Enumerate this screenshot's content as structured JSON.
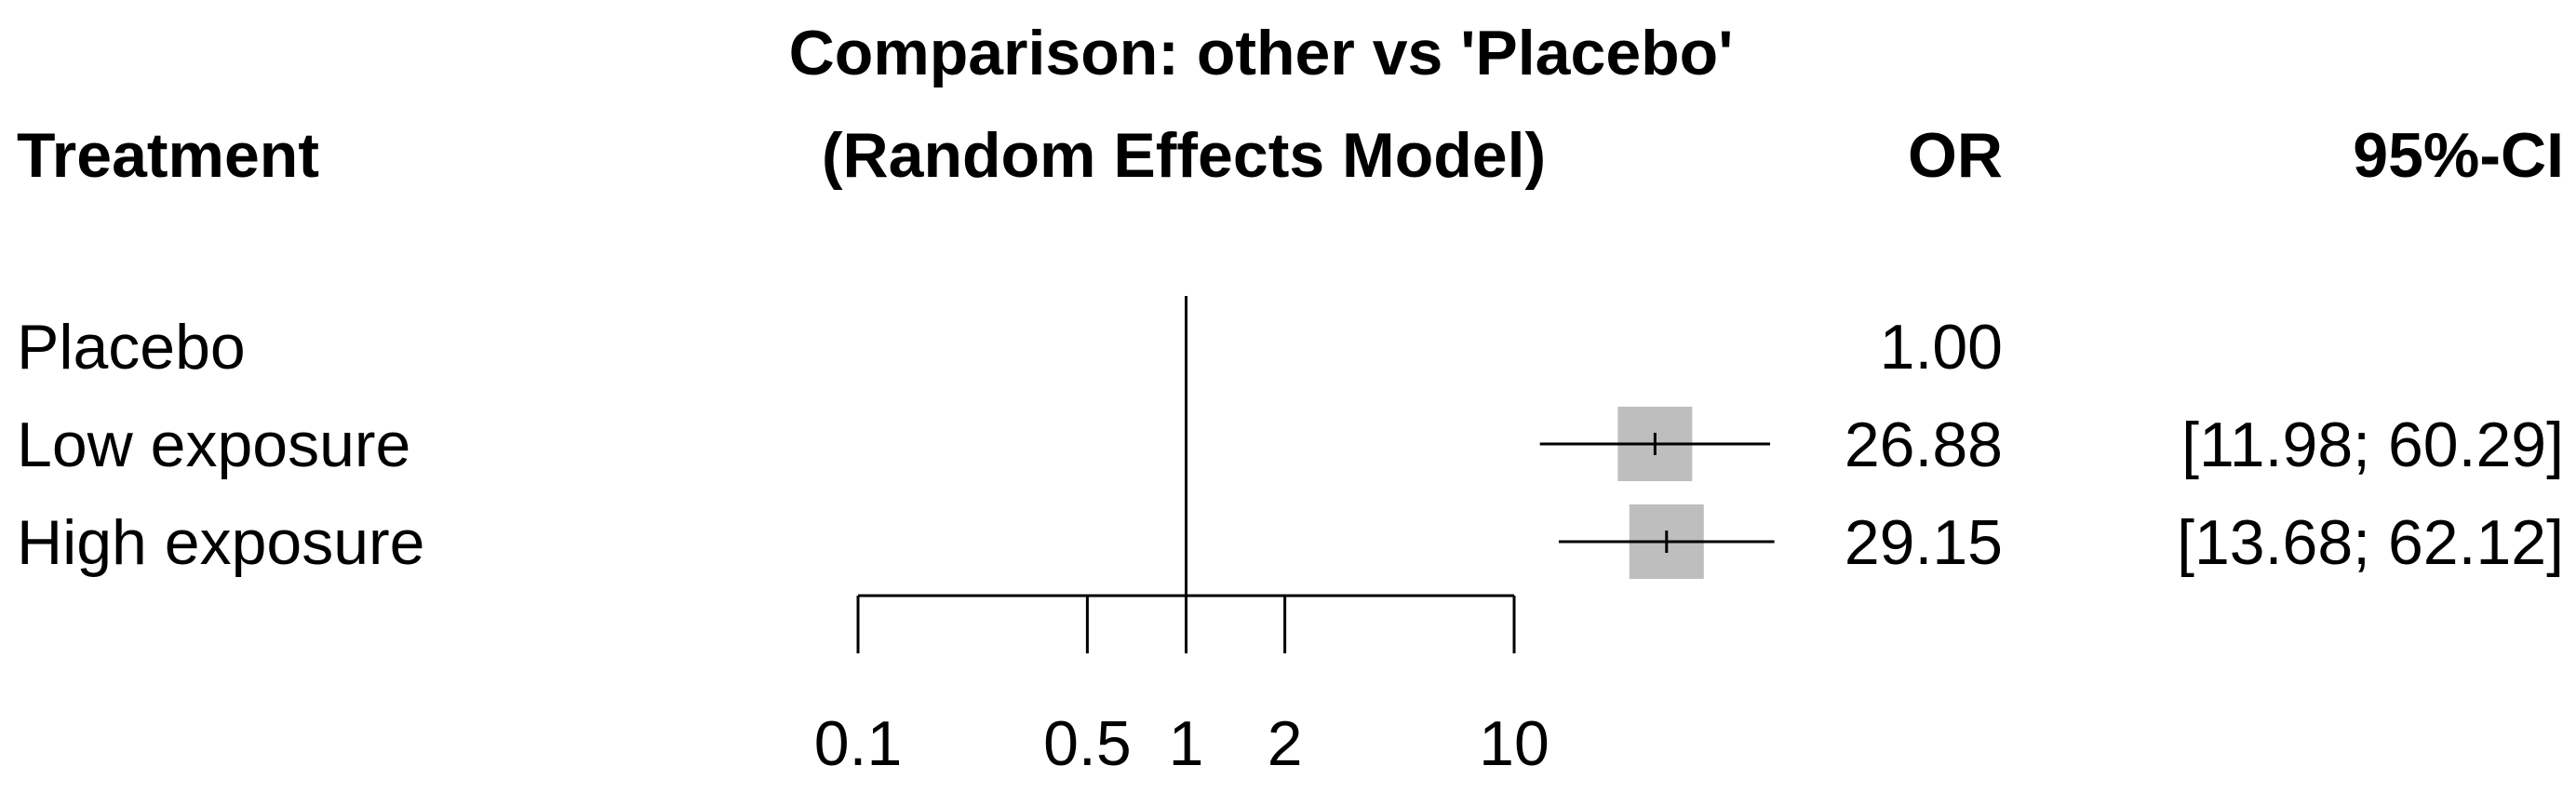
{
  "chart_data": {
    "type": "forest",
    "title_line1": "Comparison: other vs 'Placebo'",
    "title_line2": "(Random Effects Model)",
    "headers": {
      "treatment": "Treatment",
      "or": "OR",
      "ci": "95%-CI"
    },
    "xscale": "log",
    "xlim": [
      0.1,
      10
    ],
    "xticks": [
      0.1,
      0.5,
      1,
      2,
      10
    ],
    "xtick_labels": [
      "0.1",
      "0.5",
      "1",
      "2",
      "10"
    ],
    "reference_line": 1,
    "rows": [
      {
        "treatment": "Placebo",
        "or": 1.0,
        "or_text": "1.00",
        "ci_text": ""
      },
      {
        "treatment": "Low exposure",
        "or": 26.88,
        "lower": 11.98,
        "upper": 60.29,
        "or_text": "26.88",
        "ci_text": "[11.98; 60.29]"
      },
      {
        "treatment": "High exposure",
        "or": 29.15,
        "lower": 13.68,
        "upper": 62.12,
        "or_text": "29.15",
        "ci_text": "[13.68; 62.12]"
      }
    ],
    "colors": {
      "square": "#bebebe",
      "line": "#000000"
    }
  }
}
